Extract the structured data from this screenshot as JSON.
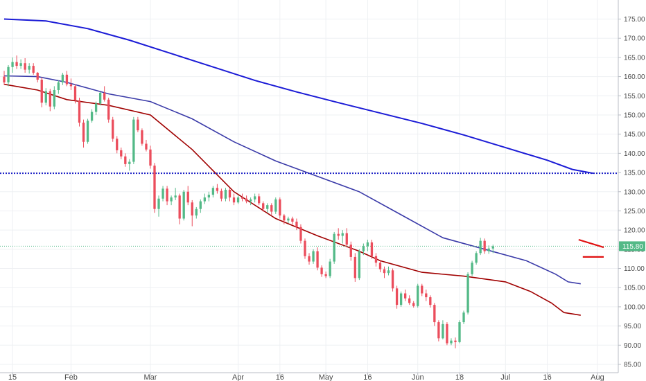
{
  "chart_data": {
    "type": "candlestick",
    "y_ticks": [
      "85.00",
      "90.00",
      "95.00",
      "100.00",
      "105.00",
      "110.00",
      "115.00",
      "120.00",
      "125.00",
      "130.00",
      "135.00",
      "140.00",
      "145.00",
      "150.00",
      "155.00",
      "160.00",
      "165.00",
      "170.00",
      "175.00"
    ],
    "ylim": [
      84,
      178
    ],
    "x_ticks": [
      {
        "label": "15",
        "index": 2
      },
      {
        "label": "Feb",
        "index": 16
      },
      {
        "label": "Mar",
        "index": 35
      },
      {
        "label": "Apr",
        "index": 56
      },
      {
        "label": "16",
        "index": 66
      },
      {
        "label": "May",
        "index": 77
      },
      {
        "label": "16",
        "index": 87
      },
      {
        "label": "Jun",
        "index": 99
      },
      {
        "label": "18",
        "index": 109
      },
      {
        "label": "Jul",
        "index": 120
      },
      {
        "label": "16",
        "index": 130
      },
      {
        "label": "Aug",
        "index": 142
      }
    ],
    "x_count": 146,
    "current_price": {
      "label": "115.80",
      "value": 115.8
    },
    "horizontal_level": {
      "value": 134.8,
      "style": "dotted",
      "color": "#1f22c8"
    },
    "colors": {
      "up": "#53b987",
      "down": "#eb4d5c",
      "ma_long": "#1b1bd6",
      "ma_mid": "#3a3aa8",
      "ma_short": "#a00000",
      "annotation": "#e01010",
      "grid": "#eef0f3"
    },
    "candles": [
      [
        160.0,
        161.5,
        157.8,
        158.5
      ],
      [
        158.5,
        163.0,
        157.5,
        162.5
      ],
      [
        162.5,
        165.0,
        161.0,
        163.8
      ],
      [
        163.8,
        165.5,
        162.0,
        162.8
      ],
      [
        162.8,
        164.5,
        162.0,
        163.5
      ],
      [
        163.5,
        164.8,
        161.0,
        161.8
      ],
      [
        161.8,
        163.5,
        160.8,
        162.8
      ],
      [
        162.8,
        163.5,
        160.5,
        161.0
      ],
      [
        161.0,
        161.2,
        158.5,
        159.2
      ],
      [
        159.2,
        159.8,
        152.0,
        153.2
      ],
      [
        153.2,
        157.0,
        152.5,
        156.2
      ],
      [
        156.2,
        156.8,
        151.0,
        152.2
      ],
      [
        152.2,
        157.5,
        151.5,
        156.5
      ],
      [
        156.5,
        159.0,
        155.5,
        158.5
      ],
      [
        158.5,
        161.0,
        157.8,
        160.5
      ],
      [
        160.5,
        161.5,
        157.5,
        158.0
      ],
      [
        158.0,
        159.5,
        156.5,
        157.5
      ],
      [
        157.5,
        158.0,
        153.0,
        153.8
      ],
      [
        153.8,
        154.5,
        147.0,
        148.0
      ],
      [
        148.0,
        148.8,
        141.5,
        143.0
      ],
      [
        143.0,
        149.0,
        142.5,
        148.5
      ],
      [
        148.5,
        151.5,
        148.0,
        150.8
      ],
      [
        150.8,
        153.5,
        150.0,
        153.0
      ],
      [
        153.0,
        156.0,
        152.5,
        155.8
      ],
      [
        155.8,
        157.5,
        153.5,
        154.0
      ],
      [
        154.0,
        154.5,
        148.0,
        148.8
      ],
      [
        148.8,
        149.5,
        143.0,
        143.8
      ],
      [
        143.8,
        144.5,
        140.0,
        140.8
      ],
      [
        140.8,
        141.5,
        138.5,
        139.2
      ],
      [
        139.2,
        140.0,
        136.5,
        137.2
      ],
      [
        137.2,
        138.5,
        135.5,
        137.8
      ],
      [
        137.8,
        149.5,
        137.2,
        148.8
      ],
      [
        148.8,
        149.5,
        145.5,
        146.0
      ],
      [
        146.0,
        146.5,
        142.0,
        142.5
      ],
      [
        142.5,
        143.5,
        140.5,
        141.0
      ],
      [
        141.0,
        142.0,
        136.0,
        136.8
      ],
      [
        136.8,
        137.5,
        124.5,
        125.5
      ],
      [
        125.5,
        129.0,
        123.5,
        128.2
      ],
      [
        128.2,
        131.5,
        127.5,
        130.8
      ],
      [
        130.8,
        131.5,
        126.5,
        127.5
      ],
      [
        127.5,
        129.0,
        126.5,
        128.5
      ],
      [
        128.5,
        131.0,
        127.8,
        129.0
      ],
      [
        129.0,
        129.5,
        121.5,
        123.0
      ],
      [
        123.0,
        130.5,
        122.5,
        130.0
      ],
      [
        130.0,
        131.5,
        126.5,
        127.2
      ],
      [
        127.2,
        127.8,
        121.0,
        123.8
      ],
      [
        123.8,
        126.0,
        123.0,
        125.5
      ],
      [
        125.5,
        128.0,
        124.5,
        127.5
      ],
      [
        127.5,
        129.5,
        126.8,
        128.5
      ],
      [
        128.5,
        130.0,
        127.5,
        129.2
      ],
      [
        129.2,
        131.5,
        128.5,
        131.0
      ],
      [
        131.0,
        132.0,
        129.5,
        130.2
      ],
      [
        130.2,
        130.8,
        127.5,
        128.2
      ],
      [
        128.2,
        131.0,
        127.5,
        130.5
      ],
      [
        130.5,
        131.0,
        127.5,
        128.5
      ],
      [
        128.5,
        129.5,
        126.5,
        127.2
      ],
      [
        127.2,
        129.0,
        126.8,
        128.5
      ],
      [
        128.5,
        129.5,
        127.5,
        128.2
      ],
      [
        128.2,
        129.0,
        127.0,
        127.5
      ],
      [
        127.5,
        128.5,
        126.5,
        128.0
      ],
      [
        128.0,
        129.5,
        127.2,
        128.8
      ],
      [
        128.8,
        129.5,
        126.5,
        127.0
      ],
      [
        127.0,
        127.5,
        124.8,
        125.5
      ],
      [
        125.5,
        127.0,
        124.5,
        126.5
      ],
      [
        126.5,
        127.0,
        124.0,
        124.8
      ],
      [
        124.8,
        128.5,
        124.2,
        128.0
      ],
      [
        128.0,
        128.5,
        123.0,
        123.8
      ],
      [
        123.8,
        124.2,
        121.5,
        122.5
      ],
      [
        122.5,
        123.5,
        121.8,
        123.0
      ],
      [
        123.0,
        123.5,
        121.5,
        122.2
      ],
      [
        122.2,
        123.0,
        120.0,
        120.8
      ],
      [
        120.8,
        121.5,
        116.5,
        117.2
      ],
      [
        117.2,
        117.8,
        112.5,
        113.2
      ],
      [
        113.2,
        114.0,
        111.0,
        111.8
      ],
      [
        111.8,
        115.0,
        111.2,
        114.5
      ],
      [
        114.5,
        115.5,
        109.5,
        110.2
      ],
      [
        110.2,
        110.8,
        107.8,
        108.5
      ],
      [
        108.5,
        109.2,
        107.5,
        108.0
      ],
      [
        108.0,
        112.5,
        107.5,
        111.8
      ],
      [
        111.8,
        119.5,
        111.2,
        119.0
      ],
      [
        119.0,
        120.5,
        117.5,
        118.5
      ],
      [
        118.5,
        120.0,
        116.5,
        119.2
      ],
      [
        119.2,
        120.5,
        115.5,
        116.2
      ],
      [
        116.2,
        117.0,
        112.0,
        113.0
      ],
      [
        113.0,
        114.0,
        106.5,
        107.5
      ],
      [
        107.5,
        115.0,
        107.0,
        114.5
      ],
      [
        114.5,
        116.5,
        113.5,
        115.8
      ],
      [
        115.8,
        117.5,
        114.5,
        116.8
      ],
      [
        116.8,
        117.5,
        112.5,
        113.2
      ],
      [
        113.2,
        114.0,
        110.5,
        111.5
      ],
      [
        111.5,
        112.0,
        109.0,
        109.8
      ],
      [
        109.8,
        110.5,
        107.5,
        108.8
      ],
      [
        108.8,
        110.5,
        108.2,
        109.5
      ],
      [
        109.5,
        110.0,
        104.0,
        104.8
      ],
      [
        104.8,
        105.5,
        99.5,
        100.5
      ],
      [
        100.5,
        104.0,
        100.0,
        103.5
      ],
      [
        103.5,
        104.5,
        101.5,
        102.2
      ],
      [
        102.2,
        103.0,
        100.5,
        101.0
      ],
      [
        101.0,
        101.5,
        99.8,
        100.2
      ],
      [
        100.2,
        106.0,
        99.8,
        105.5
      ],
      [
        105.5,
        106.0,
        102.8,
        103.5
      ],
      [
        103.5,
        104.5,
        101.5,
        102.5
      ],
      [
        102.5,
        103.0,
        99.8,
        100.5
      ],
      [
        100.5,
        101.0,
        95.0,
        96.0
      ],
      [
        96.0,
        96.5,
        91.0,
        91.8
      ],
      [
        91.8,
        96.5,
        91.5,
        95.5
      ],
      [
        95.5,
        96.0,
        90.0,
        90.5
      ],
      [
        90.5,
        91.8,
        90.0,
        91.2
      ],
      [
        91.2,
        92.0,
        89.2,
        90.8
      ],
      [
        90.8,
        96.5,
        90.5,
        96.0
      ],
      [
        96.0,
        99.0,
        95.5,
        98.5
      ],
      [
        98.5,
        109.0,
        98.0,
        108.5
      ],
      [
        108.5,
        112.0,
        108.0,
        111.5
      ],
      [
        111.5,
        114.5,
        111.0,
        114.0
      ],
      [
        114.0,
        118.0,
        113.5,
        117.2
      ],
      [
        117.2,
        117.8,
        113.8,
        114.5
      ],
      [
        114.5,
        116.0,
        113.8,
        115.2
      ],
      [
        115.2,
        116.2,
        114.0,
        115.8
      ]
    ],
    "series": [
      {
        "color": "#1b1bd6",
        "values": [
          [
            0,
            175.0
          ],
          [
            10,
            174.5
          ],
          [
            20,
            172.5
          ],
          [
            30,
            169.5
          ],
          [
            40,
            166.0
          ],
          [
            50,
            162.5
          ],
          [
            60,
            159.0
          ],
          [
            70,
            156.0
          ],
          [
            80,
            153.2
          ],
          [
            90,
            150.5
          ],
          [
            100,
            147.8
          ],
          [
            110,
            144.8
          ],
          [
            120,
            141.5
          ],
          [
            130,
            138.2
          ],
          [
            136,
            135.8
          ],
          [
            141,
            134.8
          ]
        ]
      },
      {
        "color": "#3a3aa8",
        "values": [
          [
            0,
            160.2
          ],
          [
            8,
            160.0
          ],
          [
            15,
            158.5
          ],
          [
            25,
            155.5
          ],
          [
            35,
            153.5
          ],
          [
            45,
            149.0
          ],
          [
            55,
            143.0
          ],
          [
            65,
            138.0
          ],
          [
            75,
            134.0
          ],
          [
            85,
            130.0
          ],
          [
            95,
            124.0
          ],
          [
            105,
            118.0
          ],
          [
            115,
            115.0
          ],
          [
            125,
            112.0
          ],
          [
            132,
            108.5
          ],
          [
            135,
            106.5
          ],
          [
            138,
            106.0
          ]
        ]
      },
      {
        "color": "#a00000",
        "values": [
          [
            0,
            158.0
          ],
          [
            8,
            156.5
          ],
          [
            15,
            154.0
          ],
          [
            25,
            152.5
          ],
          [
            35,
            150.0
          ],
          [
            45,
            141.0
          ],
          [
            55,
            130.0
          ],
          [
            65,
            123.0
          ],
          [
            75,
            118.5
          ],
          [
            85,
            114.5
          ],
          [
            90,
            112.0
          ],
          [
            100,
            109.0
          ],
          [
            110,
            108.0
          ],
          [
            120,
            106.5
          ],
          [
            126,
            104.0
          ],
          [
            131,
            101.0
          ],
          [
            134,
            98.5
          ],
          [
            138,
            97.8
          ]
        ]
      }
    ],
    "annotations": [
      {
        "type": "line",
        "points": [
          [
            138.5,
            113.0
          ],
          [
            143.5,
            113.0
          ]
        ],
        "color": "#e01010"
      },
      {
        "type": "line",
        "points": [
          [
            137.5,
            117.5
          ],
          [
            143.5,
            115.5
          ]
        ],
        "color": "#e01010"
      }
    ]
  }
}
